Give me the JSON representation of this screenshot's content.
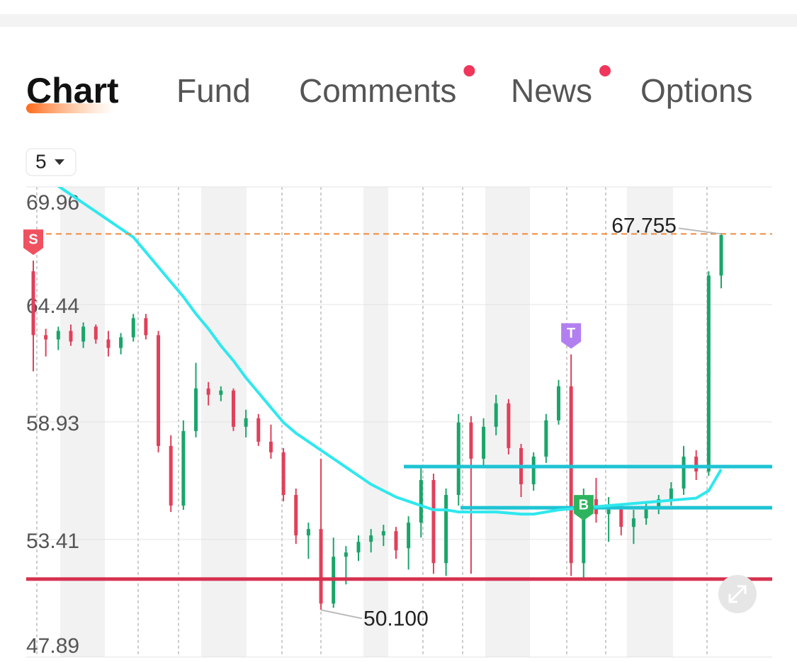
{
  "tabs": [
    {
      "label": "Chart",
      "active": true
    },
    {
      "label": "Fund"
    },
    {
      "label": "Comments",
      "badge": true
    },
    {
      "label": "News",
      "badge": true
    },
    {
      "label": "Options"
    }
  ],
  "interval": "5",
  "chart_data": {
    "type": "candlestick",
    "ylim": [
      47.89,
      69.96
    ],
    "yticks": [
      69.96,
      64.44,
      58.93,
      53.41,
      47.89
    ],
    "up_color": "#1aa56a",
    "down_color": "#e0405a",
    "open": [
      66,
      63,
      62.8,
      63.2,
      62.7,
      63.4,
      62.8,
      62.4,
      62.9,
      63.8,
      63,
      57.8,
      55,
      58.5,
      60.5,
      60.2,
      60.4,
      58.7,
      59.1,
      58,
      57.5,
      55.5,
      53.6,
      53.9,
      50.4,
      52.6,
      52.8,
      53.3,
      53.6,
      53.8,
      53,
      54.2,
      56.2,
      52.3,
      55.5,
      58.9,
      57.2,
      58.7,
      59.8,
      57.7,
      56,
      57.3,
      59,
      60.6,
      52.3,
      55.3,
      54.6,
      54.9,
      54,
      54.4,
      54.9,
      55.3,
      55.8,
      57.3,
      56.6,
      65.8
    ],
    "high": [
      66.5,
      63.3,
      63.4,
      63.5,
      63.6,
      63.5,
      63.2,
      63.1,
      64,
      64,
      63.2,
      58.3,
      59,
      61.7,
      60.8,
      60.6,
      60.5,
      59.5,
      59.3,
      58.8,
      57.7,
      55.8,
      54.2,
      57.2,
      53.5,
      53.1,
      53.6,
      53.9,
      54.1,
      54,
      54.5,
      56.8,
      56.5,
      55.8,
      59.3,
      59.2,
      59.1,
      60.2,
      60,
      57.9,
      57.5,
      59.3,
      60.9,
      62.1,
      55.8,
      56.3,
      55.4,
      55.1,
      54.8,
      55.2,
      55.5,
      56.1,
      57.8,
      57.6,
      66,
      67.8
    ],
    "low": [
      61.3,
      62,
      62.3,
      62.5,
      62.4,
      62.6,
      62,
      62.1,
      62.7,
      62.8,
      57.5,
      54.7,
      54.8,
      58.2,
      59.7,
      59.9,
      58.5,
      58.2,
      57.8,
      57.2,
      55.2,
      53.2,
      52.5,
      50.1,
      50.2,
      51.3,
      52.4,
      52.8,
      53.1,
      52.5,
      52,
      53.5,
      51.8,
      51.7,
      55,
      51.8,
      56.9,
      58.3,
      57.4,
      55.4,
      55.7,
      57,
      58.8,
      51.7,
      51.6,
      54.2,
      53.3,
      53.6,
      53.2,
      54.1,
      54.6,
      55,
      55.5,
      56.2,
      56.4,
      65.2
    ],
    "close": [
      63,
      62.8,
      63.2,
      62.7,
      63.4,
      62.8,
      62.4,
      62.9,
      63.8,
      63,
      57.8,
      55,
      58.5,
      60.5,
      60.2,
      60.4,
      58.7,
      59.1,
      58,
      57.5,
      55.5,
      53.6,
      53.9,
      50.4,
      52.6,
      52.8,
      53.3,
      53.6,
      53.8,
      52.9,
      54.2,
      56.2,
      52.3,
      55.5,
      58.9,
      57.2,
      58.7,
      59.8,
      57.7,
      56,
      57.3,
      59,
      60.6,
      52.3,
      55.3,
      54.6,
      54.9,
      54,
      54.4,
      54.9,
      55.3,
      55.8,
      57.3,
      56.6,
      65.8,
      67.7
    ],
    "ma": {
      "color": "#2ee8ee",
      "values": [
        null,
        null,
        70,
        69.6,
        69.2,
        68.8,
        68.4,
        68.0,
        67.6,
        66.9,
        66.2,
        65.5,
        64.8,
        64.0,
        63.3,
        62.5,
        61.8,
        61.0,
        60.3,
        59.6,
        58.9,
        58.4,
        58.0,
        57.6,
        57.2,
        56.8,
        56.4,
        56.0,
        55.7,
        55.4,
        55.2,
        55.0,
        54.8,
        54.8,
        54.7,
        54.7,
        54.7,
        54.7,
        54.65,
        54.6,
        54.6,
        54.7,
        54.8,
        54.85,
        54.9,
        54.95,
        55.0,
        55.05,
        55.1,
        55.15,
        55.2,
        55.25,
        55.3,
        55.35,
        55.7,
        56.7
      ]
    },
    "levels": [
      {
        "value": 51.55,
        "color": "#d6304f"
      },
      {
        "value": 56.83,
        "color": "#1ec3d3"
      },
      {
        "value": 54.9,
        "color": "#1ec3d3"
      }
    ],
    "last_price": {
      "value": 67.755,
      "label": "67.755",
      "color": "#f08a3c"
    },
    "low_label": {
      "value": 50.1,
      "label": "50.100",
      "index": 23
    },
    "markers": [
      {
        "label": "S",
        "index": 0,
        "color": "#ef5160"
      },
      {
        "label": "T",
        "index": 43,
        "color": "#b27ff0"
      },
      {
        "label": "B",
        "index": 44,
        "color": "#2cb55e"
      }
    ]
  }
}
